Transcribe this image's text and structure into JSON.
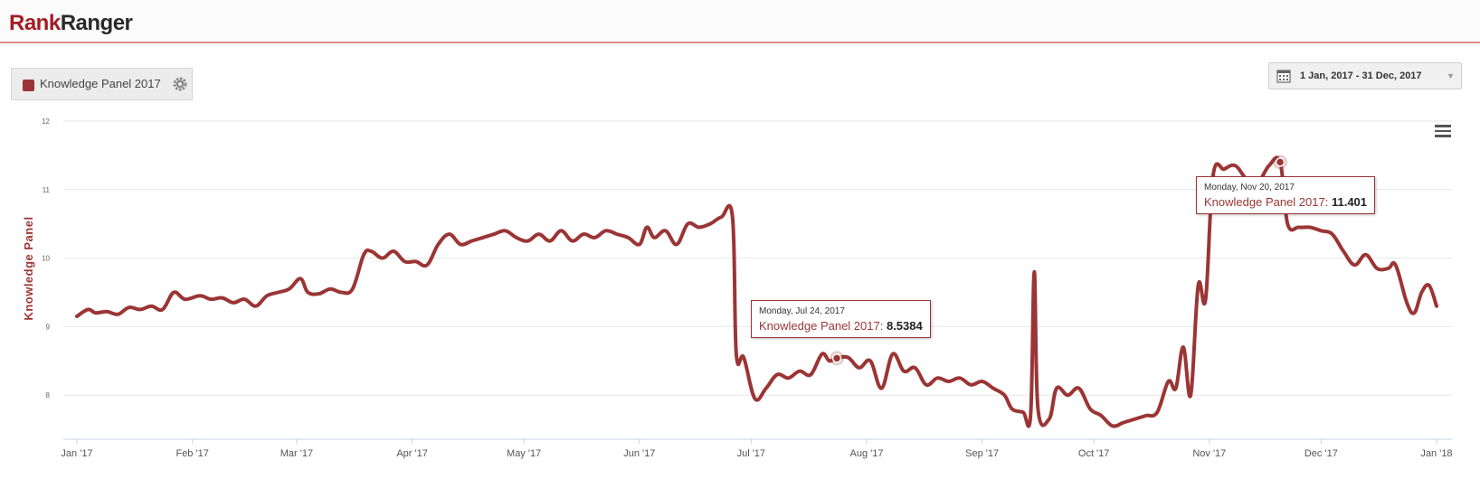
{
  "header": {
    "logo_rank": "Rank",
    "logo_ranger": "Ranger"
  },
  "legend": {
    "label": "Knowledge Panel 2017",
    "swatch_color": "#9b3535",
    "settings_icon": "gear-icon"
  },
  "date_range": {
    "label": "1 Jan, 2017 - 31 Dec, 2017",
    "icon": "calendar-icon"
  },
  "chart_menu_icon": "hamburger-menu-icon",
  "chart_data": {
    "type": "line",
    "ylabel": "Knowledge Panel",
    "xlabel": "",
    "ylim": [
      7.35,
      12
    ],
    "y_ticks": [
      8,
      9,
      10,
      11,
      12
    ],
    "x_tick_labels": [
      "Jan '17",
      "Feb '17",
      "Mar '17",
      "Apr '17",
      "May '17",
      "Jun '17",
      "Jul '17",
      "Aug '17",
      "Sep '17",
      "Oct '17",
      "Nov '17",
      "Dec '17",
      "Jan '18"
    ],
    "x_tick_dates": [
      "2017-01-01",
      "2017-02-01",
      "2017-03-01",
      "2017-04-01",
      "2017-05-01",
      "2017-06-01",
      "2017-07-01",
      "2017-08-01",
      "2017-09-01",
      "2017-10-01",
      "2017-11-01",
      "2017-12-01",
      "2018-01-01"
    ],
    "grid": true,
    "legend_position": "top-left",
    "color": "#9b3535",
    "series": [
      {
        "name": "Knowledge Panel 2017",
        "points": [
          [
            "2017-01-01",
            9.15
          ],
          [
            "2017-01-04",
            9.25
          ],
          [
            "2017-01-06",
            9.2
          ],
          [
            "2017-01-09",
            9.22
          ],
          [
            "2017-01-12",
            9.18
          ],
          [
            "2017-01-15",
            9.28
          ],
          [
            "2017-01-18",
            9.25
          ],
          [
            "2017-01-21",
            9.3
          ],
          [
            "2017-01-24",
            9.25
          ],
          [
            "2017-01-27",
            9.5
          ],
          [
            "2017-01-30",
            9.4
          ],
          [
            "2017-02-03",
            9.45
          ],
          [
            "2017-02-06",
            9.4
          ],
          [
            "2017-02-09",
            9.42
          ],
          [
            "2017-02-12",
            9.35
          ],
          [
            "2017-02-15",
            9.4
          ],
          [
            "2017-02-18",
            9.3
          ],
          [
            "2017-02-21",
            9.45
          ],
          [
            "2017-02-24",
            9.5
          ],
          [
            "2017-02-27",
            9.55
          ],
          [
            "2017-03-02",
            9.7
          ],
          [
            "2017-03-04",
            9.5
          ],
          [
            "2017-03-07",
            9.48
          ],
          [
            "2017-03-10",
            9.55
          ],
          [
            "2017-03-13",
            9.5
          ],
          [
            "2017-03-16",
            9.55
          ],
          [
            "2017-03-19",
            10.05
          ],
          [
            "2017-03-21",
            10.1
          ],
          [
            "2017-03-24",
            10.0
          ],
          [
            "2017-03-27",
            10.1
          ],
          [
            "2017-03-30",
            9.95
          ],
          [
            "2017-04-02",
            9.95
          ],
          [
            "2017-04-05",
            9.9
          ],
          [
            "2017-04-08",
            10.2
          ],
          [
            "2017-04-11",
            10.35
          ],
          [
            "2017-04-14",
            10.2
          ],
          [
            "2017-04-17",
            10.25
          ],
          [
            "2017-04-20",
            10.3
          ],
          [
            "2017-04-23",
            10.35
          ],
          [
            "2017-04-26",
            10.4
          ],
          [
            "2017-04-29",
            10.3
          ],
          [
            "2017-05-02",
            10.25
          ],
          [
            "2017-05-05",
            10.35
          ],
          [
            "2017-05-08",
            10.25
          ],
          [
            "2017-05-11",
            10.4
          ],
          [
            "2017-05-14",
            10.25
          ],
          [
            "2017-05-17",
            10.35
          ],
          [
            "2017-05-20",
            10.3
          ],
          [
            "2017-05-23",
            10.4
          ],
          [
            "2017-05-26",
            10.35
          ],
          [
            "2017-05-29",
            10.3
          ],
          [
            "2017-06-01",
            10.2
          ],
          [
            "2017-06-03",
            10.45
          ],
          [
            "2017-06-05",
            10.3
          ],
          [
            "2017-06-08",
            10.4
          ],
          [
            "2017-06-11",
            10.2
          ],
          [
            "2017-06-14",
            10.5
          ],
          [
            "2017-06-17",
            10.45
          ],
          [
            "2017-06-20",
            10.5
          ],
          [
            "2017-06-23",
            10.6
          ],
          [
            "2017-06-26",
            10.6
          ],
          [
            "2017-06-27",
            8.6
          ],
          [
            "2017-06-29",
            8.55
          ],
          [
            "2017-07-02",
            7.95
          ],
          [
            "2017-07-05",
            8.1
          ],
          [
            "2017-07-08",
            8.3
          ],
          [
            "2017-07-11",
            8.25
          ],
          [
            "2017-07-14",
            8.35
          ],
          [
            "2017-07-17",
            8.3
          ],
          [
            "2017-07-20",
            8.6
          ],
          [
            "2017-07-22",
            8.5
          ],
          [
            "2017-07-24",
            8.5384
          ],
          [
            "2017-07-27",
            8.55
          ],
          [
            "2017-07-30",
            8.4
          ],
          [
            "2017-08-02",
            8.5
          ],
          [
            "2017-08-05",
            8.1
          ],
          [
            "2017-08-08",
            8.6
          ],
          [
            "2017-08-11",
            8.35
          ],
          [
            "2017-08-14",
            8.4
          ],
          [
            "2017-08-17",
            8.15
          ],
          [
            "2017-08-20",
            8.25
          ],
          [
            "2017-08-23",
            8.2
          ],
          [
            "2017-08-26",
            8.25
          ],
          [
            "2017-08-29",
            8.15
          ],
          [
            "2017-09-01",
            8.2
          ],
          [
            "2017-09-04",
            8.1
          ],
          [
            "2017-09-07",
            8.0
          ],
          [
            "2017-09-09",
            7.8
          ],
          [
            "2017-09-12",
            7.75
          ],
          [
            "2017-09-14",
            7.7
          ],
          [
            "2017-09-15",
            9.8
          ],
          [
            "2017-09-16",
            7.8
          ],
          [
            "2017-09-19",
            7.65
          ],
          [
            "2017-09-21",
            8.1
          ],
          [
            "2017-09-24",
            8.0
          ],
          [
            "2017-09-27",
            8.1
          ],
          [
            "2017-09-30",
            7.8
          ],
          [
            "2017-10-03",
            7.7
          ],
          [
            "2017-10-06",
            7.55
          ],
          [
            "2017-10-09",
            7.6
          ],
          [
            "2017-10-12",
            7.65
          ],
          [
            "2017-10-15",
            7.7
          ],
          [
            "2017-10-18",
            7.75
          ],
          [
            "2017-10-21",
            8.2
          ],
          [
            "2017-10-23",
            8.1
          ],
          [
            "2017-10-25",
            8.7
          ],
          [
            "2017-10-27",
            8.0
          ],
          [
            "2017-10-29",
            9.6
          ],
          [
            "2017-10-31",
            9.4
          ],
          [
            "2017-11-02",
            11.2
          ],
          [
            "2017-11-05",
            11.3
          ],
          [
            "2017-11-08",
            11.35
          ],
          [
            "2017-11-11",
            11.15
          ],
          [
            "2017-11-14",
            11.1
          ],
          [
            "2017-11-17",
            11.35
          ],
          [
            "2017-11-20",
            11.401
          ],
          [
            "2017-11-22",
            10.5
          ],
          [
            "2017-11-25",
            10.45
          ],
          [
            "2017-11-28",
            10.45
          ],
          [
            "2017-12-01",
            10.4
          ],
          [
            "2017-12-04",
            10.35
          ],
          [
            "2017-12-07",
            10.1
          ],
          [
            "2017-12-10",
            9.9
          ],
          [
            "2017-12-13",
            10.05
          ],
          [
            "2017-12-16",
            9.85
          ],
          [
            "2017-12-19",
            9.85
          ],
          [
            "2017-12-21",
            9.9
          ],
          [
            "2017-12-24",
            9.35
          ],
          [
            "2017-12-26",
            9.2
          ],
          [
            "2017-12-28",
            9.5
          ],
          [
            "2017-12-30",
            9.6
          ],
          [
            "2018-01-01",
            9.3
          ]
        ]
      }
    ],
    "highlights": [
      {
        "date": "2017-07-24",
        "value": 8.5384,
        "date_label": "Monday, Jul 24, 2017",
        "value_label": "8.5384"
      },
      {
        "date": "2017-11-20",
        "value": 11.401,
        "date_label": "Monday, Nov 20, 2017",
        "value_label": "11.401"
      }
    ]
  }
}
